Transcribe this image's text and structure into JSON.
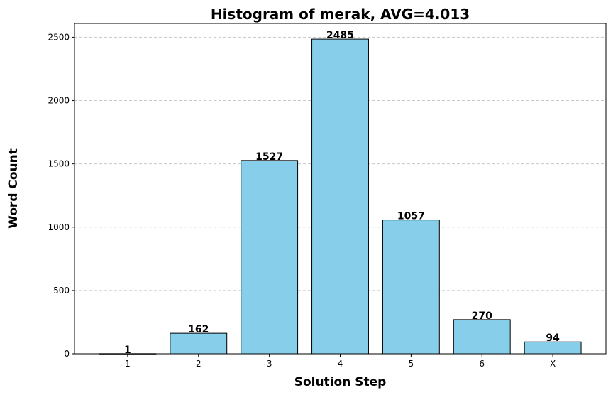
{
  "chart_data": {
    "type": "bar",
    "title": "Histogram of merak, AVG=4.013",
    "xlabel": "Solution Step",
    "ylabel": "Word Count",
    "categories": [
      "1",
      "2",
      "3",
      "4",
      "5",
      "6",
      "X"
    ],
    "values": [
      1,
      162,
      1527,
      2485,
      1057,
      270,
      94
    ],
    "ylim": [
      0,
      2609
    ],
    "yticks": [
      0,
      500,
      1000,
      1500,
      2000,
      2500
    ],
    "grid": "y, dashed",
    "colors": {
      "bar_fill": "#87CEEB",
      "bar_edge": "#000000",
      "grid": "#c8c8c8"
    }
  }
}
